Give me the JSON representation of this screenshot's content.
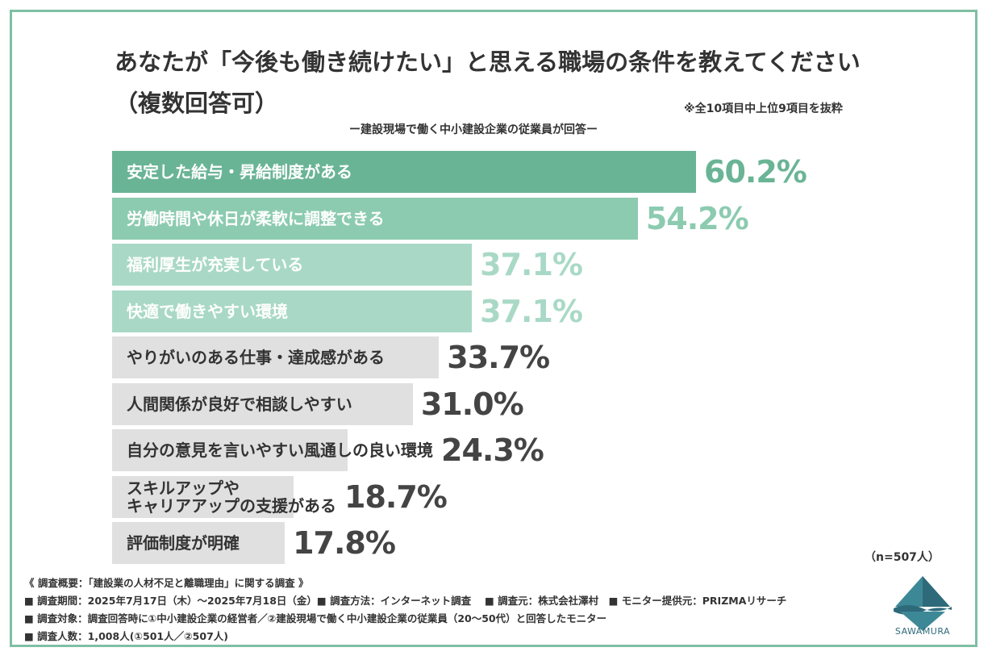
{
  "header": {
    "title_line1": "あなたが「今後も働き続けたい」と思える職場の条件を教えてください",
    "title_line2": "（複数回答可）",
    "note": "※全10項目中上位9項目を抜粋",
    "subtitle": "ー建設現場で働く中小建設企業の従業員が回答ー"
  },
  "chart_data": {
    "type": "bar",
    "orientation": "horizontal",
    "categories": [
      "安定した給与・昇給制度がある",
      "労働時間や休日が柔軟に調整できる",
      "福利厚生が充実している",
      "快適で働きやすい環境",
      "やりがいのある仕事・達成感がある",
      "人間関係が良好で相談しやすい",
      "自分の意見を言いやすい風通しの良い環境",
      "スキルアップや\nキャリアアップの支援がある",
      "評価制度が明確"
    ],
    "values": [
      60.2,
      54.2,
      37.1,
      37.1,
      33.7,
      31.0,
      24.3,
      18.7,
      17.8
    ],
    "value_labels": [
      "60.2%",
      "54.2%",
      "37.1%",
      "37.1%",
      "33.7%",
      "31.0%",
      "24.3%",
      "18.7%",
      "17.8%"
    ],
    "unit": "%",
    "colors": {
      "bar": [
        "#6ab496",
        "#8ccbb0",
        "#a9d9c6",
        "#a9d9c6",
        "#e0e0e0",
        "#e0e0e0",
        "#e0e0e0",
        "#e0e0e0",
        "#e0e0e0"
      ],
      "label_text": [
        "#ffffff",
        "#ffffff",
        "#ffffff",
        "#ffffff",
        "#333333",
        "#333333",
        "#333333",
        "#333333",
        "#333333"
      ],
      "value_text": [
        "#6ab496",
        "#8ccbb0",
        "#a9d9c6",
        "#a9d9c6",
        "#444444",
        "#444444",
        "#444444",
        "#444444",
        "#444444"
      ]
    },
    "xlim": [
      0,
      60.2
    ]
  },
  "sample_size": "（n=507人）",
  "footer": {
    "line1": "《 調査概要：「建設業の人材不足と離職理由」に関する調査 》",
    "line2": "■ 調査期間：2025年7月17日（木）〜2025年7月18日（金）■ 調査方法：インターネット調査　 ■ 調査元：株式会社澤村　■ モニター提供元：PRIZMAリサーチ",
    "line3": "■ 調査対象：調査回答時に①中小建設企業の経営者／②建設現場で働く中小建設企業の従業員（20〜50代）と回答したモニター",
    "line4": "■ 調査人数：1,008人(①501人／②507人)"
  },
  "logo": {
    "text": "SAWAMURA",
    "color": "#2e6a7a"
  },
  "frame_color": "#7fbfa4"
}
